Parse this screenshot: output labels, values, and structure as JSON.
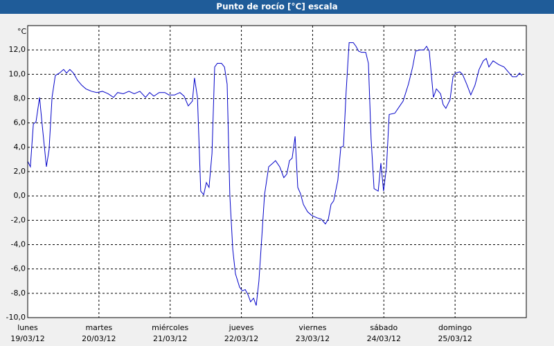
{
  "chart_data": {
    "type": "line",
    "title": "Punto de rocío [°C] escala",
    "y_label": "°C",
    "color": "#0000c8",
    "grid": true,
    "xlim": [
      0,
      168
    ],
    "ylim": [
      -10,
      14
    ],
    "xticks": [
      {
        "value": 0,
        "label": [
          "lunes",
          "19/03/12"
        ]
      },
      {
        "value": 24,
        "label": [
          "martes",
          "20/03/12"
        ]
      },
      {
        "value": 48,
        "label": [
          "miércoles",
          "21/03/12"
        ]
      },
      {
        "value": 72,
        "label": [
          "jueves",
          "22/03/12"
        ]
      },
      {
        "value": 96,
        "label": [
          "viernes",
          "23/03/12"
        ]
      },
      {
        "value": 120,
        "label": [
          "sábado",
          "24/03/12"
        ]
      },
      {
        "value": 144,
        "label": [
          "domingo",
          "25/03/12"
        ]
      }
    ],
    "yticks": [
      {
        "value": -10,
        "label": "-10,0"
      },
      {
        "value": -8,
        "label": "-8,0"
      },
      {
        "value": -6,
        "label": "-6,0"
      },
      {
        "value": -4,
        "label": "-4,0"
      },
      {
        "value": -2,
        "label": "-2,0"
      },
      {
        "value": 0,
        "label": "0,0"
      },
      {
        "value": 2,
        "label": "2,0"
      },
      {
        "value": 4,
        "label": "4,0"
      },
      {
        "value": 6,
        "label": "6,0"
      },
      {
        "value": 8,
        "label": "8,0"
      },
      {
        "value": 10,
        "label": "10,0"
      },
      {
        "value": 12,
        "label": "12,0"
      }
    ],
    "x": [
      0,
      0.9,
      1.9,
      2.8,
      4.0,
      4.9,
      6.3,
      7.2,
      8.2,
      9.3,
      10.7,
      12.1,
      13.1,
      14.2,
      15.4,
      16.8,
      18.2,
      19.6,
      21.5,
      23.3,
      25.2,
      27.1,
      28.9,
      30.3,
      32.2,
      34.1,
      35.9,
      37.8,
      39.7,
      41.1,
      42.5,
      44.3,
      46.2,
      47.6,
      49.5,
      51.3,
      52.7,
      54.1,
      55.5,
      56.2,
      57.2,
      58.3,
      59.3,
      60.2,
      61.1,
      62.1,
      63.0,
      63.9,
      65.3,
      66.3,
      67.2,
      68.1,
      69.1,
      70.0,
      71.4,
      72.3,
      73.3,
      74.2,
      75.1,
      76.1,
      77.0,
      77.9,
      78.9,
      79.8,
      81.2,
      82.6,
      83.5,
      84.9,
      86.3,
      87.3,
      88.2,
      89.1,
      90.1,
      91.0,
      91.9,
      92.9,
      94.3,
      95.7,
      97.5,
      98.9,
      100.3,
      101.3,
      102.2,
      103.1,
      104.5,
      105.5,
      106.4,
      107.3,
      108.3,
      109.7,
      110.6,
      111.5,
      112.5,
      113.9,
      114.8,
      115.7,
      116.7,
      118.1,
      119.0,
      119.9,
      120.9,
      121.8,
      123.7,
      125.1,
      126.5,
      128.3,
      129.7,
      130.7,
      132.1,
      133.5,
      134.4,
      135.3,
      136.7,
      137.7,
      139.1,
      140.0,
      140.9,
      142.3,
      143.3,
      144.2,
      145.6,
      146.5,
      147.9,
      149.3,
      150.7,
      152.1,
      153.5,
      154.5,
      155.4,
      156.8,
      158.7,
      160.5,
      161.9,
      163.3,
      164.7,
      165.7,
      166.6
    ],
    "values": [
      2.85,
      2.4,
      5.9,
      6.1,
      8.1,
      5.8,
      2.4,
      3.8,
      8.1,
      9.9,
      10.1,
      10.4,
      10.1,
      10.4,
      10.1,
      9.5,
      9.1,
      8.8,
      8.6,
      8.5,
      8.6,
      8.4,
      8.1,
      8.5,
      8.4,
      8.6,
      8.4,
      8.6,
      8.1,
      8.5,
      8.2,
      8.5,
      8.5,
      8.3,
      8.3,
      8.5,
      8.2,
      7.4,
      7.8,
      9.7,
      8.1,
      0.4,
      0.1,
      1.1,
      0.7,
      3.5,
      10.6,
      10.9,
      10.9,
      10.6,
      9.2,
      0.1,
      -4.4,
      -6.4,
      -7.5,
      -7.8,
      -7.7,
      -8.1,
      -8.7,
      -8.4,
      -9.0,
      -7.0,
      -3.3,
      0.1,
      2.4,
      2.7,
      2.9,
      2.4,
      1.5,
      1.8,
      2.9,
      3.1,
      4.9,
      0.7,
      0.2,
      -0.7,
      -1.3,
      -1.6,
      -1.8,
      -1.9,
      -2.3,
      -1.9,
      -0.7,
      -0.4,
      1.3,
      4.0,
      4.1,
      8.6,
      12.6,
      12.6,
      12.3,
      11.9,
      11.8,
      11.8,
      10.9,
      4.7,
      0.6,
      0.4,
      2.7,
      0.4,
      2.4,
      6.7,
      6.8,
      7.3,
      7.8,
      9.2,
      10.6,
      11.9,
      12.0,
      12.0,
      12.3,
      11.9,
      8.1,
      8.8,
      8.4,
      7.5,
      7.2,
      7.9,
      9.8,
      10.1,
      10.2,
      10.0,
      9.2,
      8.3,
      9.1,
      10.4,
      11.1,
      11.3,
      10.6,
      11.1,
      10.8,
      10.6,
      10.2,
      9.8,
      9.8,
      10.1,
      9.9
    ]
  }
}
